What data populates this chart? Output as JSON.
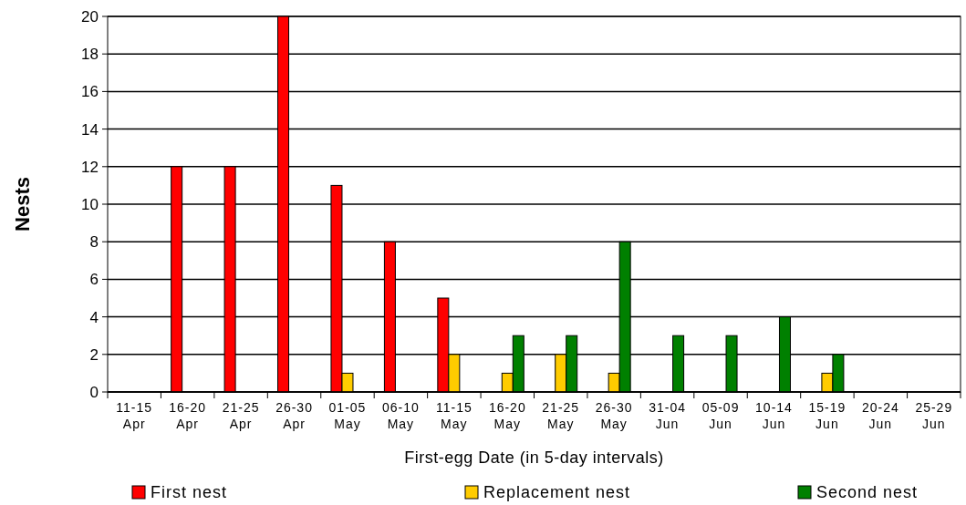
{
  "chart_data": {
    "type": "bar",
    "xlabel": "First-egg Date (in 5-day intervals)",
    "ylabel": "Nests",
    "categories": [
      "11-15 Apr",
      "16-20 Apr",
      "21-25 Apr",
      "26-30 Apr",
      "01-05 May",
      "06-10 May",
      "11-15 May",
      "16-20 May",
      "21-25 May",
      "26-30 May",
      "31-04 Jun",
      "05-09 Jun",
      "10-14 Jun",
      "15-19 Jun",
      "20-24 Jun",
      "25-29 Jun"
    ],
    "series": [
      {
        "name": "First nest",
        "color": "#ff0000",
        "values": [
          0,
          12,
          12,
          20,
          11,
          8,
          5,
          0,
          0,
          0,
          0,
          0,
          0,
          0,
          0,
          0
        ]
      },
      {
        "name": "Replacement nest",
        "color": "#ffcc00",
        "values": [
          0,
          0,
          0,
          0,
          1,
          0,
          2,
          1,
          2,
          1,
          0,
          0,
          0,
          1,
          0,
          0
        ]
      },
      {
        "name": "Second nest",
        "color": "#008000",
        "values": [
          0,
          0,
          0,
          0,
          0,
          0,
          0,
          3,
          3,
          8,
          3,
          3,
          4,
          2,
          0,
          0
        ]
      }
    ],
    "ylim": [
      0,
      20
    ],
    "yticks": [
      0,
      2,
      4,
      6,
      8,
      10,
      12,
      14,
      16,
      18,
      20
    ],
    "grid": "y",
    "legend": "bottom"
  }
}
